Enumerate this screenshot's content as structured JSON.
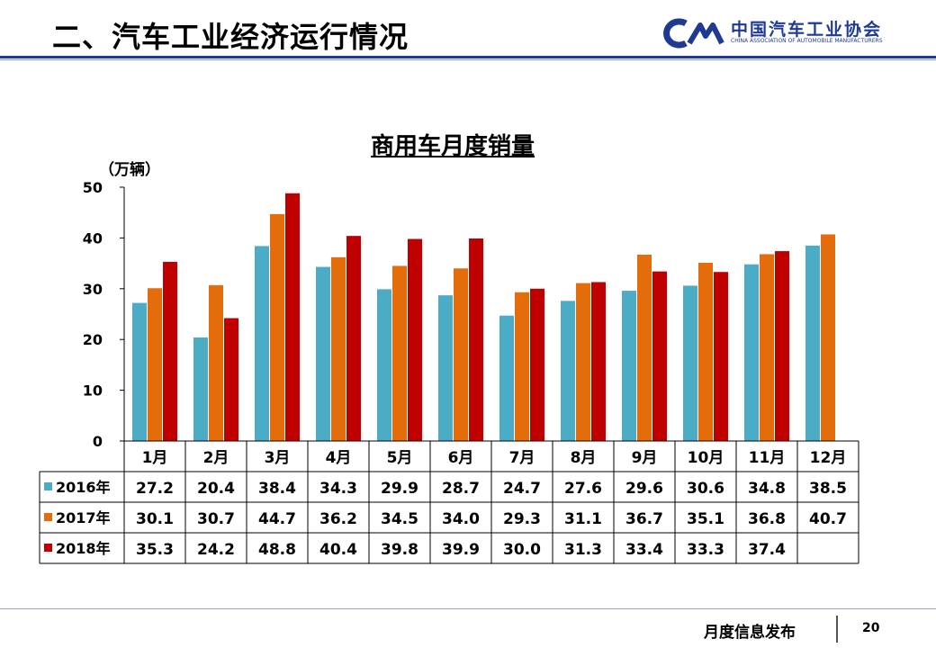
{
  "header": {
    "title": "二、汽车工业经济运行情况"
  },
  "logo": {
    "cn_name": "中国汽车工业协会",
    "en_name": "CHINA ASSOCIATION OF AUTOMOBILE MANUFACTURERS"
  },
  "chart_data": {
    "type": "bar",
    "title": "商用车月度销量",
    "ylabel": "（万辆）",
    "xlabel": "",
    "ylim": [
      0,
      50
    ],
    "yticks": [
      0,
      10,
      20,
      30,
      40,
      50
    ],
    "grid": false,
    "legend": "table-left",
    "categories": [
      "1月",
      "2月",
      "3月",
      "4月",
      "5月",
      "6月",
      "7月",
      "8月",
      "9月",
      "10月",
      "11月",
      "12月"
    ],
    "series": [
      {
        "name": "2016年",
        "color": "#4bacc6",
        "values": [
          27.2,
          20.4,
          38.4,
          34.3,
          29.9,
          28.7,
          24.7,
          27.6,
          29.6,
          30.6,
          34.8,
          38.5
        ],
        "labels": [
          "27.2",
          "20.4",
          "38.4",
          "34.3",
          "29.9",
          "28.7",
          "24.7",
          "27.6",
          "29.6",
          "30.6",
          "34.8",
          "38.5"
        ]
      },
      {
        "name": "2017年",
        "color": "#e46c0a",
        "values": [
          30.1,
          30.7,
          44.7,
          36.2,
          34.5,
          34.0,
          29.3,
          31.1,
          36.7,
          35.1,
          36.8,
          40.7
        ],
        "labels": [
          "30.1",
          "30.7",
          "44.7",
          "36.2",
          "34.5",
          "34.0",
          "29.3",
          "31.1",
          "36.7",
          "35.1",
          "36.8",
          "40.7"
        ]
      },
      {
        "name": "2018年",
        "color": "#c00000",
        "values": [
          35.3,
          24.2,
          48.8,
          40.4,
          39.8,
          39.9,
          30.0,
          31.3,
          33.4,
          33.3,
          37.4,
          null
        ],
        "labels": [
          "35.3",
          "24.2",
          "48.8",
          "40.4",
          "39.8",
          "39.9",
          "30.0",
          "31.3",
          "33.4",
          "33.3",
          "37.4",
          ""
        ]
      }
    ]
  },
  "footer": {
    "text": "月度信息发布",
    "page": "20"
  }
}
